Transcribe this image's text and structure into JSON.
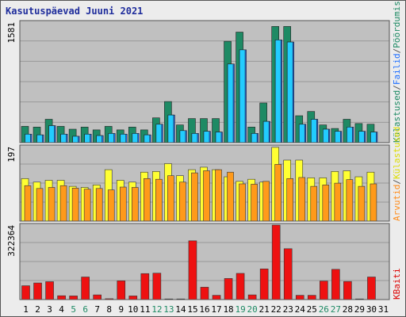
{
  "title": "Kasutuspäevad Juuni 2021",
  "chart_data": {
    "type": "bar",
    "title": "Kasutuspäevad Juuni 2021",
    "categories": [
      "1",
      "2",
      "3",
      "4",
      "5",
      "6",
      "7",
      "8",
      "9",
      "10",
      "11",
      "12",
      "13",
      "14",
      "15",
      "16",
      "17",
      "18",
      "19",
      "20",
      "21",
      "22",
      "23",
      "24",
      "25",
      "26",
      "27",
      "28",
      "29",
      "30",
      "31"
    ],
    "weekend_days": [
      "5",
      "6",
      "12",
      "13",
      "19",
      "20",
      "26",
      "27"
    ],
    "panels": [
      {
        "id": "top",
        "ytick": "1581",
        "ylim": [
          0,
          1700
        ],
        "legend": [
          {
            "text": "Külastused",
            "color": "#1e8a64"
          },
          {
            "text": "/",
            "color": "#555555"
          },
          {
            "text": "Failid",
            "color": "#1f6fff"
          },
          {
            "text": "/",
            "color": "#555555"
          },
          {
            "text": "Pöördumised",
            "color": "#1e8a64"
          }
        ],
        "series": [
          {
            "name": "Külastused",
            "color": "#1e8a64",
            "values": [
              230,
              220,
              330,
              230,
              190,
              220,
              180,
              230,
              180,
              220,
              180,
              350,
              580,
              250,
              340,
              340,
              340,
              1430,
              1560,
              220,
              560,
              1640,
              1640,
              380,
              440,
              250,
              200,
              330,
              270,
              260,
              0
            ]
          },
          {
            "name": "Failid",
            "color": "#1f6fff",
            "values": [
              120,
              110,
              240,
              120,
              90,
              120,
              100,
              130,
              120,
              130,
              110,
              260,
              390,
              170,
              130,
              160,
              150,
              1110,
              1310,
              130,
              300,
              1450,
              1420,
              260,
              330,
              190,
              160,
              220,
              160,
              150,
              0
            ]
          },
          {
            "name": "Pöördumised",
            "color": "#22ccff",
            "values": [
              120,
              110,
              240,
              120,
              90,
              120,
              100,
              130,
              120,
              130,
              110,
              260,
              390,
              170,
              130,
              160,
              150,
              1110,
              1310,
              130,
              300,
              1450,
              1420,
              260,
              330,
              190,
              160,
              220,
              160,
              150,
              0
            ]
          }
        ]
      },
      {
        "id": "middle",
        "ytick": "197",
        "ylim": [
          0,
          210
        ],
        "legend": [
          {
            "text": "Arvutid",
            "color": "#ff8c1a"
          },
          {
            "text": "/",
            "color": "#555555"
          },
          {
            "text": "Külastused",
            "color": "#dddd00"
          }
        ],
        "series": [
          {
            "name": "Külastused",
            "color": "#ffff33",
            "values": [
              120,
              110,
              115,
              115,
              98,
              95,
              102,
              145,
              115,
              110,
              138,
              140,
              162,
              128,
              145,
              152,
              145,
              125,
              112,
              118,
              110,
              208,
              172,
              172,
              122,
              122,
              140,
              142,
              125,
              138,
              0
            ]
          },
          {
            "name": "Arvutid",
            "color": "#ff9a1a",
            "values": [
              100,
              92,
              95,
              100,
              93,
              90,
              92,
              88,
              96,
              95,
              120,
              118,
              128,
              110,
              136,
              142,
              145,
              138,
              105,
              104,
              112,
              160,
              120,
              123,
              98,
              102,
              107,
              117,
              98,
              105,
              0
            ]
          }
        ]
      },
      {
        "id": "bottom",
        "ytick": "322364",
        "ylim": [
          0,
          350000
        ],
        "legend": [
          {
            "text": "KBaiti",
            "color": "#dd0000"
          }
        ],
        "series": [
          {
            "name": "KBaiti",
            "color": "#ee1111",
            "values": [
              65000,
              78000,
              84000,
              18000,
              17000,
              106000,
              22000,
              4000,
              88000,
              17000,
              122000,
              124000,
              3000,
              3000,
              276000,
              58000,
              20000,
              99000,
              123000,
              22000,
              144000,
              350000,
              239000,
              20000,
              20000,
              87000,
              142000,
              85000,
              3000,
              106000,
              0
            ]
          }
        ]
      }
    ]
  }
}
